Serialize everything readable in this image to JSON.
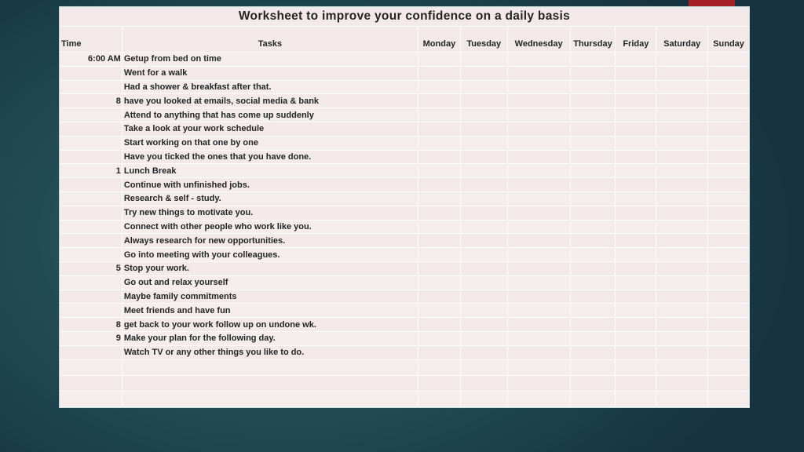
{
  "slide": {
    "title": "Worksheet to improve your confidence on a daily basis",
    "accent_color": "#a32026",
    "table_background": "#f4e9e9",
    "background_color": "#1d434e",
    "text_color": "#242424"
  },
  "table": {
    "headers": [
      "Time",
      "Tasks",
      "Monday",
      "Tuesday",
      "Wednesday",
      "Thursday",
      "Friday",
      "Saturday",
      "Sunday"
    ],
    "rows": [
      {
        "time": "6:00 AM",
        "task": "Getup from bed on time"
      },
      {
        "time": "",
        "task": "Went for a walk"
      },
      {
        "time": "",
        "task": "Had a shower & breakfast after that."
      },
      {
        "time": "8",
        "task": "have you looked at emails, social media & bank"
      },
      {
        "time": "",
        "task": "Attend to anything that has come up suddenly"
      },
      {
        "time": "",
        "task": "Take a look at your work schedule"
      },
      {
        "time": "",
        "task": "Start working on that one by one"
      },
      {
        "time": "",
        "task": "Have you ticked the ones that you have done."
      },
      {
        "time": "1",
        "task": "Lunch Break"
      },
      {
        "time": "",
        "task": "Continue with unfinished jobs."
      },
      {
        "time": "",
        "task": "Research & self - study."
      },
      {
        "time": "",
        "task": "Try new things to motivate you."
      },
      {
        "time": "",
        "task": "Connect with other people who work like you."
      },
      {
        "time": "",
        "task": "Always research for new opportunities."
      },
      {
        "time": "",
        "task": "Go into meeting with your colleagues."
      },
      {
        "time": "5",
        "task": "Stop your work."
      },
      {
        "time": "",
        "task": "Go out and relax yourself"
      },
      {
        "time": "",
        "task": "Maybe family commitments"
      },
      {
        "time": "",
        "task": "Meet friends and have fun"
      },
      {
        "time": "8",
        "task": "get back to your work  follow up on undone wk."
      },
      {
        "time": "9",
        "task": "Make your plan for the following day."
      },
      {
        "time": "",
        "task": "Watch TV or any other things you like to do."
      },
      {
        "time": "",
        "task": ""
      },
      {
        "time": "",
        "task": ""
      },
      {
        "time": "",
        "task": ""
      },
      {
        "time": "",
        "task": ""
      }
    ]
  }
}
